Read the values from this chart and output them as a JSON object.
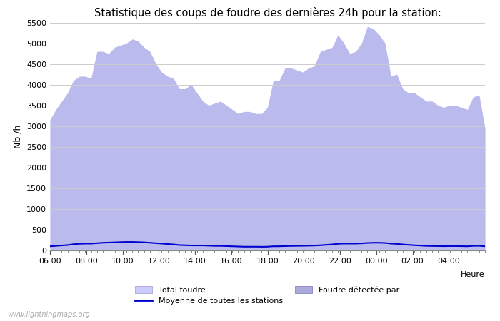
{
  "title": "Statistique des coups de foudre des dernières 24h pour la station:",
  "ylabel": "Nb /h",
  "xlabel": "Heure",
  "ylim": [
    0,
    5500
  ],
  "yticks": [
    0,
    500,
    1000,
    1500,
    2000,
    2500,
    3000,
    3500,
    4000,
    4500,
    5000,
    5500
  ],
  "x_labels": [
    "06:00",
    "08:00",
    "10:00",
    "12:00",
    "14:00",
    "16:00",
    "18:00",
    "20:00",
    "22:00",
    "00:00",
    "02:00",
    "04:00"
  ],
  "watermark": "www.lightningmaps.org",
  "legend": {
    "total_foudre_label": "Total foudre",
    "moyenne_label": "Moyenne de toutes les stations",
    "foudre_detectee_label": "Foudre détectée par"
  },
  "total_foudre_color": "#ccccff",
  "foudre_detectee_color": "#aaaadd",
  "moyenne_color": "#0000cc",
  "background_color": "#ffffff",
  "grid_color": "#cccccc",
  "total_foudre_data": [
    3150,
    3400,
    3600,
    3800,
    4100,
    4200,
    4200,
    4150,
    4800,
    4800,
    4750,
    4900,
    4950,
    5000,
    5100,
    5050,
    4900,
    4800,
    4500,
    4300,
    4200,
    4150,
    3900,
    3900,
    4000,
    3800,
    3600,
    3500,
    3550,
    3600,
    3500,
    3400,
    3300,
    3350,
    3350,
    3300,
    3300,
    3450,
    4100,
    4100,
    4400,
    4400,
    4350,
    4300,
    4400,
    4450,
    4800,
    4850,
    4900,
    5200,
    5000,
    4750,
    4800,
    5000,
    5400,
    5350,
    5200,
    5000,
    4200,
    4250,
    3900,
    3800,
    3800,
    3700,
    3600,
    3600,
    3500,
    3450,
    3500,
    3500,
    3450,
    3400,
    3700,
    3750,
    2950
  ],
  "moyenne_data": [
    100,
    110,
    120,
    130,
    150,
    160,
    165,
    165,
    175,
    185,
    190,
    195,
    200,
    205,
    205,
    200,
    195,
    185,
    175,
    165,
    155,
    145,
    130,
    125,
    120,
    120,
    120,
    115,
    110,
    110,
    105,
    100,
    95,
    90,
    90,
    90,
    88,
    90,
    100,
    100,
    105,
    108,
    110,
    112,
    115,
    118,
    125,
    135,
    145,
    160,
    165,
    165,
    165,
    170,
    180,
    185,
    185,
    180,
    165,
    158,
    145,
    135,
    125,
    118,
    110,
    107,
    105,
    102,
    105,
    105,
    103,
    100,
    110,
    112,
    100
  ]
}
